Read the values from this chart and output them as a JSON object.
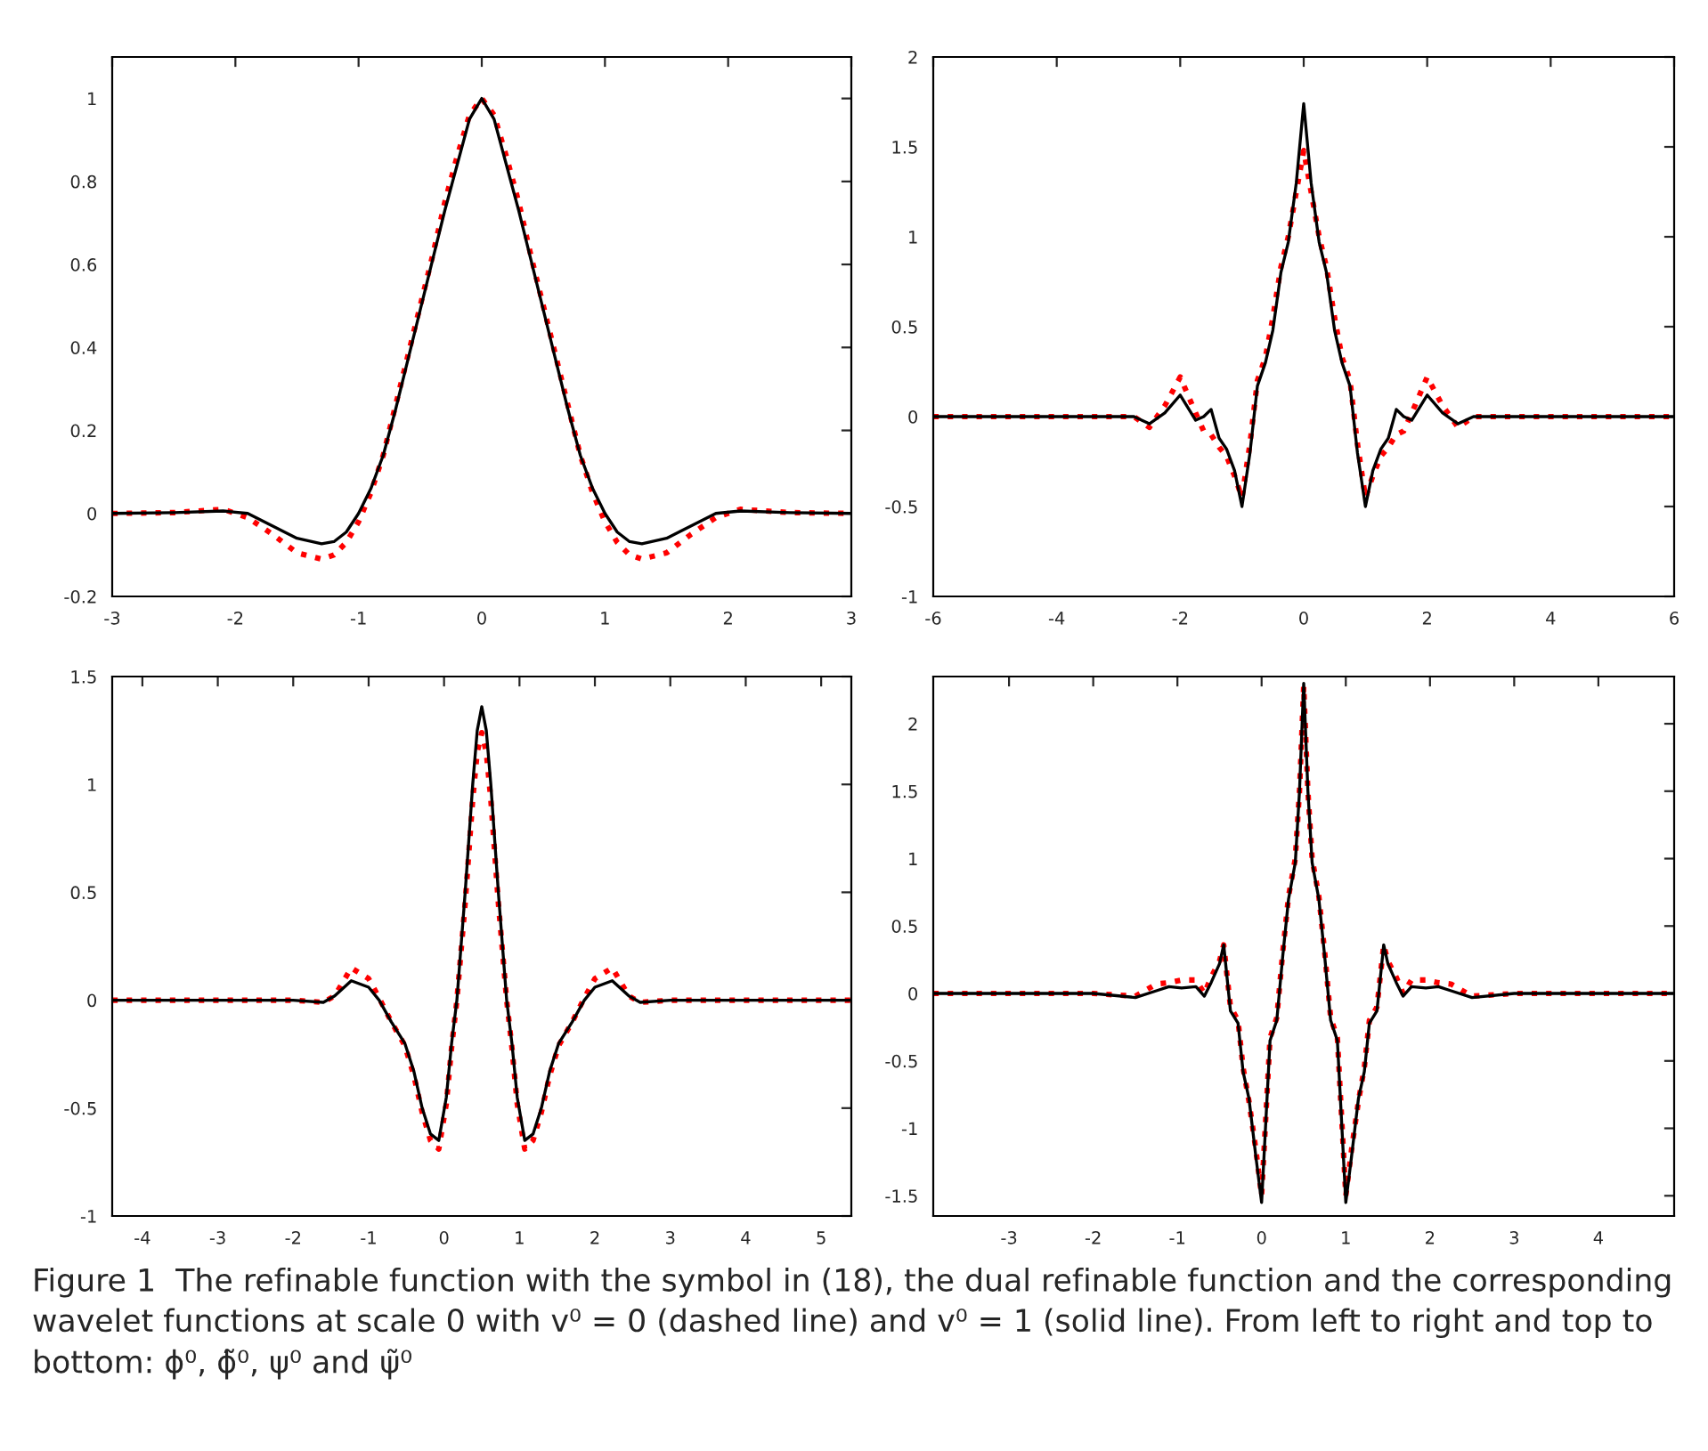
{
  "chart_data": [
    {
      "type": "line",
      "xlim": [
        -3,
        3
      ],
      "ylim": [
        -0.2,
        1.1
      ],
      "xticks": [
        -3,
        -2,
        -1,
        0,
        1,
        2,
        3
      ],
      "yticks": [
        -0.2,
        0,
        0.2,
        0.4,
        0.6,
        0.8,
        1
      ],
      "grid": false,
      "legend": false,
      "marker": "none",
      "series": [
        {
          "color": "#ff0000",
          "line_style": "dotted",
          "x": [
            -3,
            -2.5,
            -2.1,
            -1.9,
            -1.7,
            -1.5,
            -1.3,
            -1.2,
            -1.1,
            -1.0,
            -0.9,
            -0.8,
            -0.7,
            -0.6,
            -0.5,
            -0.4,
            -0.3,
            -0.2,
            -0.1,
            0,
            0.1,
            0.2,
            0.3,
            0.4,
            0.5,
            0.6,
            0.7,
            0.8,
            0.9,
            1.0,
            1.1,
            1.2,
            1.3,
            1.5,
            1.7,
            1.9,
            2.1,
            2.5,
            3
          ],
          "values": [
            0,
            0.002,
            0.01,
            -0.01,
            -0.05,
            -0.095,
            -0.11,
            -0.1,
            -0.07,
            -0.02,
            0.05,
            0.14,
            0.26,
            0.38,
            0.5,
            0.62,
            0.75,
            0.86,
            0.96,
            1.0,
            0.96,
            0.86,
            0.75,
            0.62,
            0.5,
            0.38,
            0.26,
            0.14,
            0.05,
            -0.02,
            -0.07,
            -0.1,
            -0.11,
            -0.095,
            -0.05,
            -0.01,
            0.01,
            0.002,
            0
          ]
        },
        {
          "color": "#000000",
          "line_style": "solid",
          "x": [
            -3,
            -2.5,
            -2.1,
            -1.9,
            -1.7,
            -1.5,
            -1.3,
            -1.2,
            -1.1,
            -1.0,
            -0.9,
            -0.8,
            -0.7,
            -0.6,
            -0.5,
            -0.4,
            -0.3,
            -0.2,
            -0.1,
            0,
            0.1,
            0.2,
            0.3,
            0.4,
            0.5,
            0.6,
            0.7,
            0.8,
            0.9,
            1.0,
            1.1,
            1.2,
            1.3,
            1.5,
            1.7,
            1.9,
            2.1,
            2.5,
            3
          ],
          "values": [
            0,
            0.002,
            0.006,
            0,
            -0.03,
            -0.06,
            -0.073,
            -0.068,
            -0.045,
            0,
            0.06,
            0.14,
            0.25,
            0.37,
            0.49,
            0.61,
            0.73,
            0.84,
            0.95,
            1.0,
            0.95,
            0.84,
            0.73,
            0.61,
            0.49,
            0.37,
            0.25,
            0.14,
            0.06,
            0,
            -0.045,
            -0.068,
            -0.073,
            -0.06,
            -0.03,
            0,
            0.006,
            0.002,
            0
          ]
        }
      ]
    },
    {
      "type": "line",
      "xlim": [
        -6,
        6
      ],
      "ylim": [
        -1,
        2
      ],
      "xticks": [
        -6,
        -4,
        -2,
        0,
        2,
        4,
        6
      ],
      "yticks": [
        -1,
        -0.5,
        0,
        0.5,
        1,
        1.5,
        2
      ],
      "grid": false,
      "legend": false,
      "marker": "none",
      "series": [
        {
          "color": "#ff0000",
          "line_style": "dotted",
          "x": [
            -6,
            -3,
            -2.75,
            -2.5,
            -2.25,
            -2,
            -1.75,
            -1.62,
            -1.5,
            -1.37,
            -1.25,
            -1.12,
            -1,
            -0.87,
            -0.75,
            -0.62,
            -0.5,
            -0.37,
            -0.25,
            -0.12,
            0,
            0.12,
            0.25,
            0.37,
            0.5,
            0.62,
            0.75,
            0.87,
            1,
            1.12,
            1.25,
            1.37,
            1.5,
            1.62,
            1.75,
            2,
            2.25,
            2.5,
            2.75,
            3,
            6
          ],
          "values": [
            0,
            0,
            0,
            -0.06,
            0.06,
            0.22,
            0.02,
            -0.08,
            -0.1,
            -0.17,
            -0.22,
            -0.33,
            -0.45,
            -0.15,
            0.2,
            0.33,
            0.55,
            0.83,
            1.0,
            1.25,
            1.48,
            1.25,
            1.0,
            0.83,
            0.55,
            0.33,
            0.2,
            -0.15,
            -0.45,
            -0.33,
            -0.22,
            -0.17,
            -0.1,
            -0.08,
            0.02,
            0.22,
            0.06,
            -0.06,
            0,
            0,
            0
          ]
        },
        {
          "color": "#000000",
          "line_style": "solid",
          "x": [
            -6,
            -3,
            -2.75,
            -2.5,
            -2.25,
            -2,
            -1.75,
            -1.62,
            -1.5,
            -1.37,
            -1.25,
            -1.12,
            -1,
            -0.87,
            -0.75,
            -0.62,
            -0.5,
            -0.37,
            -0.25,
            -0.12,
            0,
            0.12,
            0.25,
            0.37,
            0.5,
            0.62,
            0.75,
            0.87,
            1,
            1.12,
            1.25,
            1.37,
            1.5,
            1.62,
            1.75,
            2,
            2.25,
            2.5,
            2.75,
            3,
            6
          ],
          "values": [
            0,
            0,
            0,
            -0.04,
            0.02,
            0.12,
            -0.02,
            0,
            0.04,
            -0.12,
            -0.18,
            -0.3,
            -0.5,
            -0.2,
            0.17,
            0.3,
            0.48,
            0.8,
            0.97,
            1.3,
            1.74,
            1.3,
            0.97,
            0.8,
            0.48,
            0.3,
            0.17,
            -0.2,
            -0.5,
            -0.3,
            -0.18,
            -0.12,
            0.04,
            0,
            -0.02,
            0.12,
            0.02,
            -0.04,
            0,
            0,
            0
          ]
        }
      ]
    },
    {
      "type": "line",
      "xlim": [
        -4.4,
        5.4
      ],
      "ylim": [
        -1,
        1.5
      ],
      "xticks": [
        -4,
        -3,
        -2,
        -1,
        0,
        1,
        2,
        3,
        4,
        5
      ],
      "yticks": [
        -1,
        -0.5,
        0,
        0.5,
        1,
        1.5
      ],
      "grid": false,
      "legend": false,
      "marker": "none",
      "series": [
        {
          "color": "#ff0000",
          "line_style": "dotted",
          "x": [
            -4.4,
            -2,
            -1.6,
            -1.45,
            -1.23,
            -1.0,
            -0.86,
            -0.7,
            -0.52,
            -0.4,
            -0.29,
            -0.18,
            -0.07,
            0.03,
            0.1,
            0.17,
            0.28,
            0.38,
            0.44,
            0.5,
            0.56,
            0.62,
            0.72,
            0.83,
            0.9,
            0.97,
            1.07,
            1.18,
            1.29,
            1.4,
            1.52,
            1.7,
            1.86,
            2.0,
            2.23,
            2.45,
            2.6,
            3.0,
            5.4
          ],
          "values": [
            0,
            0,
            -0.01,
            0.02,
            0.15,
            0.1,
            0.01,
            -0.1,
            -0.21,
            -0.35,
            -0.52,
            -0.65,
            -0.69,
            -0.48,
            -0.22,
            0,
            0.45,
            0.93,
            1.15,
            1.24,
            1.15,
            0.93,
            0.45,
            0,
            -0.22,
            -0.48,
            -0.69,
            -0.65,
            -0.52,
            -0.35,
            -0.21,
            -0.1,
            0.01,
            0.1,
            0.15,
            0.02,
            -0.01,
            0,
            0
          ]
        },
        {
          "color": "#000000",
          "line_style": "solid",
          "x": [
            -4.4,
            -2,
            -1.6,
            -1.45,
            -1.23,
            -1.0,
            -0.86,
            -0.7,
            -0.52,
            -0.4,
            -0.29,
            -0.18,
            -0.07,
            0.03,
            0.1,
            0.17,
            0.28,
            0.38,
            0.44,
            0.5,
            0.56,
            0.62,
            0.72,
            0.83,
            0.9,
            0.97,
            1.07,
            1.18,
            1.29,
            1.4,
            1.52,
            1.7,
            1.86,
            2.0,
            2.23,
            2.45,
            2.6,
            3.0,
            5.4
          ],
          "values": [
            0,
            0,
            -0.01,
            0.02,
            0.09,
            0.06,
            0,
            -0.1,
            -0.2,
            -0.33,
            -0.5,
            -0.62,
            -0.65,
            -0.45,
            -0.2,
            0,
            0.5,
            1.0,
            1.25,
            1.36,
            1.25,
            1.0,
            0.5,
            0,
            -0.2,
            -0.45,
            -0.65,
            -0.62,
            -0.5,
            -0.33,
            -0.2,
            -0.1,
            0,
            0.06,
            0.09,
            0.02,
            -0.01,
            0,
            0
          ]
        }
      ]
    },
    {
      "type": "line",
      "xlim": [
        -3.9,
        4.9
      ],
      "ylim": [
        -1.65,
        2.35
      ],
      "xticks": [
        -3,
        -2,
        -1,
        0,
        1,
        2,
        3,
        4
      ],
      "yticks": [
        -1.5,
        -1,
        -0.5,
        0,
        0.5,
        1,
        1.5,
        2
      ],
      "grid": false,
      "legend": false,
      "marker": "none",
      "series": [
        {
          "color": "#ff0000",
          "line_style": "dotted",
          "x": [
            -3.9,
            -2.5,
            -2.0,
            -1.5,
            -1.25,
            -1.1,
            -0.95,
            -0.78,
            -0.68,
            -0.6,
            -0.5,
            -0.45,
            -0.37,
            -0.28,
            -0.22,
            -0.15,
            -0.07,
            0,
            0.1,
            0.18,
            0.25,
            0.32,
            0.4,
            0.45,
            0.5,
            0.55,
            0.6,
            0.68,
            0.75,
            0.82,
            0.9,
            1.0,
            1.07,
            1.15,
            1.22,
            1.28,
            1.37,
            1.45,
            1.5,
            1.6,
            1.68,
            1.78,
            1.95,
            2.1,
            2.25,
            2.5,
            3.0,
            3.5,
            4.9
          ],
          "values": [
            0,
            0,
            0,
            -0.02,
            0.07,
            0.08,
            0.1,
            0.1,
            0.0,
            0.12,
            0.24,
            0.36,
            -0.1,
            -0.2,
            -0.55,
            -0.8,
            -1.15,
            -1.5,
            -0.33,
            -0.18,
            0.3,
            0.72,
            1.0,
            1.5,
            2.28,
            1.5,
            1.0,
            0.72,
            0.3,
            -0.18,
            -0.33,
            -1.5,
            -1.15,
            -0.8,
            -0.55,
            -0.2,
            -0.1,
            0.36,
            0.24,
            0.12,
            0.0,
            0.1,
            0.1,
            0.08,
            0.07,
            -0.02,
            0,
            0,
            0
          ]
        },
        {
          "color": "#000000",
          "line_style": "solid",
          "x": [
            -3.9,
            -2.5,
            -2.0,
            -1.5,
            -1.25,
            -1.1,
            -0.95,
            -0.78,
            -0.68,
            -0.6,
            -0.5,
            -0.45,
            -0.37,
            -0.28,
            -0.22,
            -0.15,
            -0.07,
            0,
            0.1,
            0.18,
            0.25,
            0.32,
            0.4,
            0.45,
            0.5,
            0.55,
            0.6,
            0.68,
            0.75,
            0.82,
            0.9,
            1.0,
            1.07,
            1.15,
            1.22,
            1.28,
            1.37,
            1.45,
            1.5,
            1.6,
            1.68,
            1.78,
            1.95,
            2.1,
            2.25,
            2.5,
            3.0,
            3.5,
            4.9
          ],
          "values": [
            0,
            0,
            0,
            -0.03,
            0.02,
            0.05,
            0.04,
            0.05,
            -0.02,
            0.08,
            0.22,
            0.36,
            -0.13,
            -0.22,
            -0.58,
            -0.78,
            -1.2,
            -1.55,
            -0.35,
            -0.2,
            0.27,
            0.7,
            0.97,
            1.5,
            2.3,
            1.5,
            0.97,
            0.7,
            0.27,
            -0.2,
            -0.35,
            -1.55,
            -1.2,
            -0.78,
            -0.58,
            -0.22,
            -0.13,
            0.36,
            0.22,
            0.08,
            -0.02,
            0.05,
            0.04,
            0.05,
            0.02,
            -0.03,
            0,
            0,
            0
          ]
        }
      ],
      "annotations": [
        "Figure 1  The refinable function with the symbol in (18), the dual refinable function and the corresponding wavelet functions at scale 0 with v⁰ = 0 (dashed line) and v⁰ = 1 (solid line). From left to right and top to bottom: ϕ⁰, ϕ̃⁰, ψ⁰ and ψ̃⁰"
      ]
    }
  ]
}
